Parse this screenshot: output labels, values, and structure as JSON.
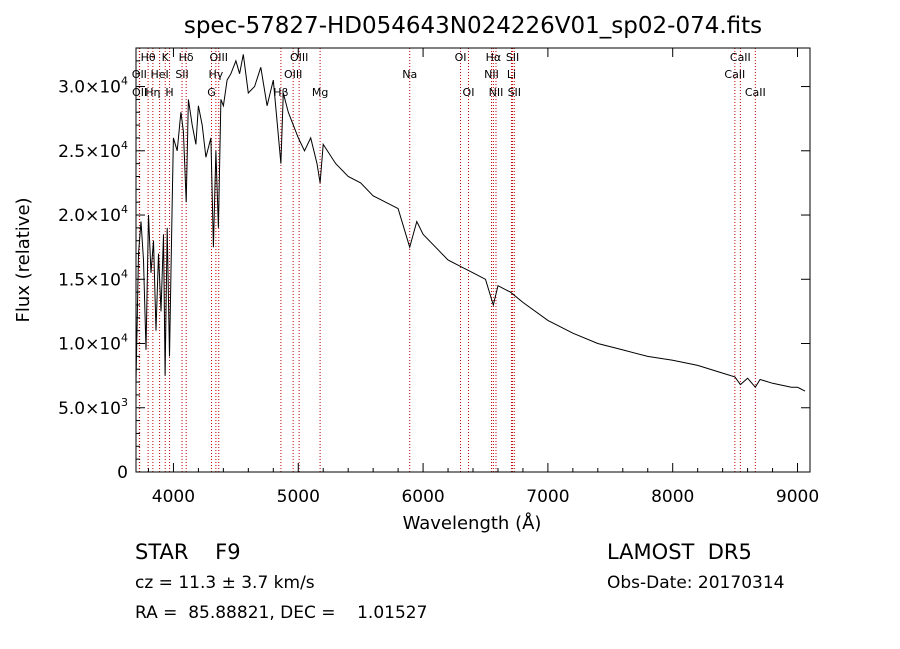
{
  "chart_data": {
    "type": "line",
    "title": "spec-57827-HD054643N024226V01_sp02-074.fits",
    "xlabel": "Wavelength (Å)",
    "ylabel": "Flux (relative)",
    "xlim": [
      3700,
      9100
    ],
    "ylim": [
      0,
      33000
    ],
    "x_ticks": [
      {
        "value": 4000,
        "label": "4000"
      },
      {
        "value": 5000,
        "label": "5000"
      },
      {
        "value": 6000,
        "label": "6000"
      },
      {
        "value": 7000,
        "label": "7000"
      },
      {
        "value": 8000,
        "label": "8000"
      },
      {
        "value": 9000,
        "label": "9000"
      }
    ],
    "y_ticks": [
      {
        "value": 0,
        "mant": "0",
        "exp": ""
      },
      {
        "value": 5000,
        "mant": "5.0×10",
        "exp": "3"
      },
      {
        "value": 10000,
        "mant": "1.0×10",
        "exp": "4"
      },
      {
        "value": 15000,
        "mant": "1.5×10",
        "exp": "4"
      },
      {
        "value": 20000,
        "mant": "2.0×10",
        "exp": "4"
      },
      {
        "value": 25000,
        "mant": "2.5×10",
        "exp": "4"
      },
      {
        "value": 30000,
        "mant": "3.0×10",
        "exp": "4"
      }
    ],
    "series": [
      {
        "x": [
          3700,
          3720,
          3740,
          3760,
          3780,
          3800,
          3820,
          3840,
          3860,
          3880,
          3900,
          3920,
          3933,
          3950,
          3968,
          3990,
          4000,
          4030,
          4060,
          4080,
          4102,
          4120,
          4150,
          4180,
          4200,
          4230,
          4260,
          4300,
          4320,
          4340,
          4360,
          4380,
          4400,
          4430,
          4460,
          4500,
          4530,
          4560,
          4600,
          4650,
          4700,
          4750,
          4800,
          4861,
          4880,
          4920,
          4960,
          5000,
          5050,
          5100,
          5150,
          5175,
          5200,
          5300,
          5400,
          5500,
          5600,
          5700,
          5800,
          5893,
          5950,
          6000,
          6100,
          6200,
          6300,
          6400,
          6500,
          6563,
          6600,
          6700,
          6800,
          7000,
          7200,
          7400,
          7600,
          7800,
          8000,
          8200,
          8400,
          8498,
          8542,
          8600,
          8662,
          8700,
          8800,
          8900,
          8950,
          9000,
          9020,
          9040,
          9060
        ],
        "y": [
          7000,
          17000,
          19500,
          16500,
          9500,
          20000,
          15500,
          18000,
          11000,
          17000,
          12500,
          18500,
          7500,
          19000,
          9000,
          21000,
          26000,
          25000,
          28000,
          26500,
          21000,
          29000,
          27000,
          25500,
          28500,
          27000,
          24500,
          26000,
          17500,
          25000,
          19000,
          29000,
          28500,
          30500,
          31000,
          32000,
          31000,
          32500,
          29500,
          30000,
          31500,
          28500,
          30500,
          24000,
          29500,
          28000,
          27000,
          26000,
          25000,
          26000,
          24000,
          22500,
          25500,
          24000,
          23000,
          22500,
          21500,
          21000,
          20500,
          17500,
          19500,
          18500,
          17500,
          16500,
          16000,
          15500,
          15000,
          13000,
          14500,
          14000,
          13200,
          11800,
          10800,
          10000,
          9500,
          9000,
          8700,
          8300,
          7700,
          7400,
          6800,
          7300,
          6600,
          7200,
          6900,
          6700,
          6600,
          6600,
          6500,
          6400,
          6300
        ]
      }
    ],
    "lines": [
      {
        "label": "Hθ",
        "x": 3797,
        "row": 0
      },
      {
        "label": "OII",
        "x": 3727,
        "row": 1
      },
      {
        "label": "OII",
        "x": 3729,
        "row": 2
      },
      {
        "label": "Hη",
        "x": 3835,
        "row": 2
      },
      {
        "label": "HeI",
        "x": 3889,
        "row": 1
      },
      {
        "label": "K",
        "x": 3934,
        "row": 0
      },
      {
        "label": "H",
        "x": 3969,
        "row": 2
      },
      {
        "label": "SII",
        "x": 4069,
        "row": 1
      },
      {
        "label": "Hδ",
        "x": 4102,
        "row": 0
      },
      {
        "label": "OIII",
        "x": 4363,
        "row": 0
      },
      {
        "label": "Hγ",
        "x": 4340,
        "row": 1
      },
      {
        "label": "G",
        "x": 4305,
        "row": 2
      },
      {
        "label": "OIII",
        "x": 5007,
        "row": 0
      },
      {
        "label": "OIII",
        "x": 4959,
        "row": 1
      },
      {
        "label": "Hβ",
        "x": 4861,
        "row": 2
      },
      {
        "label": "Mg",
        "x": 5175,
        "row": 2
      },
      {
        "label": "Na",
        "x": 5893,
        "row": 1
      },
      {
        "label": "OI",
        "x": 6300,
        "row": 0
      },
      {
        "label": "OI",
        "x": 6364,
        "row": 2
      },
      {
        "label": "Hα",
        "x": 6563,
        "row": 0
      },
      {
        "label": "NII",
        "x": 6548,
        "row": 1
      },
      {
        "label": "NII",
        "x": 6584,
        "row": 2
      },
      {
        "label": "SII",
        "x": 6717,
        "row": 0
      },
      {
        "label": "Li",
        "x": 6708,
        "row": 1
      },
      {
        "label": "SII",
        "x": 6731,
        "row": 2
      },
      {
        "label": "CaII",
        "x": 8542,
        "row": 0
      },
      {
        "label": "CaII",
        "x": 8498,
        "row": 1
      },
      {
        "label": "CaII",
        "x": 8662,
        "row": 2
      }
    ],
    "colors": {
      "spectrum": "#000000",
      "lines": "#c00000",
      "axes": "#000000"
    }
  },
  "footer": {
    "object": "STAR    F9",
    "cz": "cz = 11.3 ± 3.7 km/s",
    "coords": "RA =  85.88821, DEC =    1.01527",
    "survey": "LAMOST  DR5",
    "obsdate": "Obs-Date: 20170314"
  }
}
